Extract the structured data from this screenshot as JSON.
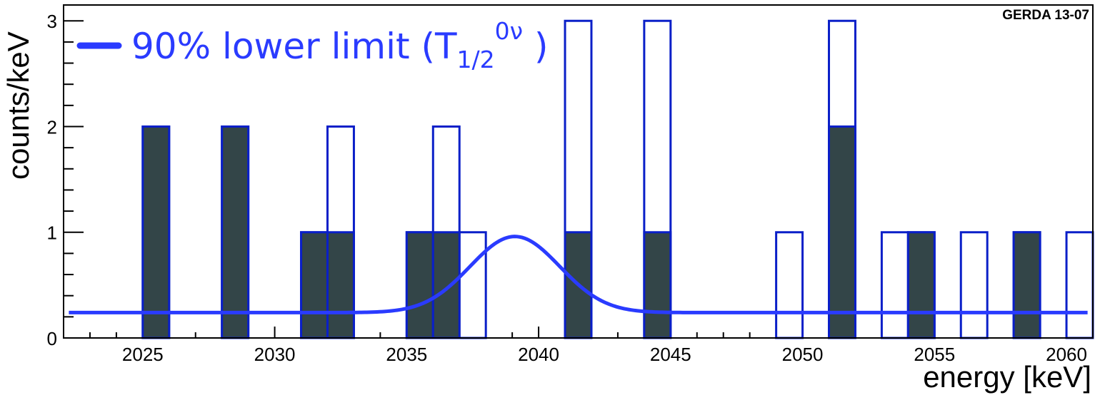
{
  "chart_data": {
    "type": "bar",
    "title": "",
    "xlabel": "energy  [keV]",
    "ylabel": "counts/keV",
    "xlim": [
      2022,
      2061
    ],
    "ylim": [
      0,
      3.15
    ],
    "x_ticks": [
      "2025",
      "2030",
      "2035",
      "2040",
      "2045",
      "2050",
      "2055",
      "2060"
    ],
    "y_ticks": [
      "0",
      "1",
      "2",
      "3"
    ],
    "bin_width_keV": 1,
    "annotation": "GERDA 13-07",
    "legend": {
      "position": "top-left",
      "prefix": "90% lower limit (T",
      "sub": "1/2",
      "sup": "0ν",
      "suffix": " )"
    },
    "series": [
      {
        "name": "",
        "style": "open",
        "bins": [
          {
            "x": 2025,
            "y": 2
          },
          {
            "x": 2028,
            "y": 2
          },
          {
            "x": 2031,
            "y": 1
          },
          {
            "x": 2032,
            "y": 2
          },
          {
            "x": 2035,
            "y": 1
          },
          {
            "x": 2036,
            "y": 2
          },
          {
            "x": 2037,
            "y": 1
          },
          {
            "x": 2041,
            "y": 3
          },
          {
            "x": 2044,
            "y": 3
          },
          {
            "x": 2049,
            "y": 1
          },
          {
            "x": 2051,
            "y": 3
          },
          {
            "x": 2053,
            "y": 1
          },
          {
            "x": 2054,
            "y": 1
          },
          {
            "x": 2056,
            "y": 1
          },
          {
            "x": 2058,
            "y": 1
          },
          {
            "x": 2060,
            "y": 1
          }
        ]
      },
      {
        "name": "",
        "style": "filled",
        "bins": [
          {
            "x": 2025,
            "y": 2
          },
          {
            "x": 2028,
            "y": 2
          },
          {
            "x": 2031,
            "y": 1
          },
          {
            "x": 2032,
            "y": 1
          },
          {
            "x": 2035,
            "y": 1
          },
          {
            "x": 2036,
            "y": 1
          },
          {
            "x": 2041,
            "y": 1
          },
          {
            "x": 2044,
            "y": 1
          },
          {
            "x": 2051,
            "y": 2
          },
          {
            "x": 2054,
            "y": 1
          },
          {
            "x": 2058,
            "y": 1
          }
        ]
      }
    ],
    "curve": {
      "name": "90% lower limit (T1/2 0ν)",
      "type": "gaussian-on-flat-background",
      "background": 0.24,
      "peak_height": 0.72,
      "mean": 2039.1,
      "sigma": 1.7,
      "x_range": [
        2022.2,
        2060.8
      ]
    },
    "colors": {
      "outline": "#0a1fc8",
      "fill": "#334548",
      "curve": "#2a3bff",
      "axis": "#000000"
    }
  }
}
